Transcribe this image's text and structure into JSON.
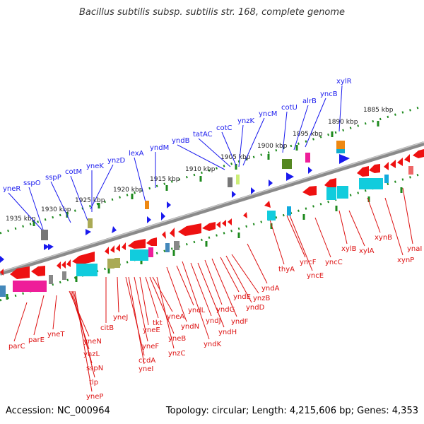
{
  "title": "Bacillus subtilis subsp. subtilis str. 168, complete genome",
  "footer": {
    "accession": "Accession: NC_000964",
    "summary": "Topology: circular; Length: 4,215,606 bp; Genes: 4,353"
  },
  "colors": {
    "backbone": "#8a8a8a",
    "scale_dots": "#1e8a1e",
    "forward_gene": "#1a1aee",
    "reverse_gene": "#ee0000",
    "cds_red": "#ee1111",
    "cds_pink": "#ee1e99",
    "cds_cyan": "#11ccdd",
    "cds_steel": "#4488bb",
    "cds_gray": "#888888",
    "cds_olive": "#aaaa55",
    "cds_orange": "#ee8811",
    "cds_green": "#558822",
    "cds_lime": "#ccee77",
    "label_blue": "#1a1aee",
    "label_red": "#dd1111"
  },
  "scale_ticks": [
    "1935 kbp",
    "1930 kbp",
    "1925 kbp",
    "1920 kbp",
    "1915 kbp",
    "1910 kbp",
    "1905 kbp",
    "1900 kbp",
    "1895 kbp",
    "1890 kbp",
    "1885 kbp"
  ],
  "forward_labels": [
    "yneR",
    "sspO",
    "sspP",
    "cotM",
    "yneK",
    "ynzD",
    "lexA",
    "yndM",
    "yndB",
    "tatAC",
    "cotC",
    "ynzK",
    "yncM",
    "cotU",
    "alrB",
    "yncB",
    "xylR"
  ],
  "reverse_labels": [
    "parC",
    "parE",
    "yneT",
    "yneN",
    "ynzL",
    "sspN",
    "tlp",
    "yneP",
    "citB",
    "yneJ",
    "ccdA",
    "yneI",
    "yneF",
    "yneE",
    "tkt",
    "yneB",
    "yneA",
    "ynzC",
    "yndN",
    "yndL",
    "yndK",
    "yndJ",
    "yndH",
    "yndG",
    "yndF",
    "yndE",
    "yndD",
    "ynzB",
    "yndA",
    "thyA",
    "yncF",
    "yncE",
    "yncC",
    "xylB",
    "xylA",
    "xynB",
    "xynP",
    "ynaI"
  ]
}
